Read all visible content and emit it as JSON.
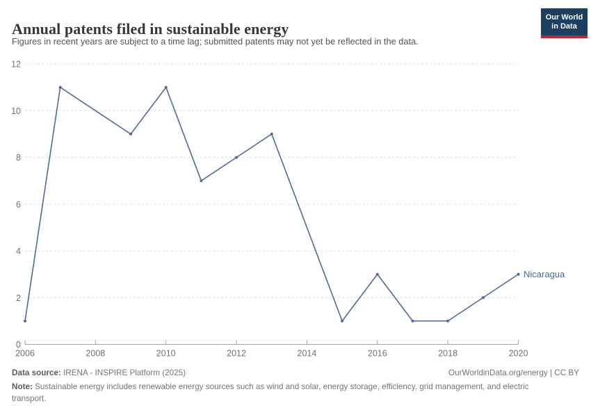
{
  "header": {
    "title": "Annual patents filed in sustainable energy",
    "subtitle": "Figures in recent years are subject to a time lag; submitted patents may not yet be reflected in the data.",
    "logo": {
      "line1": "Our World",
      "line2": "in Data"
    }
  },
  "chart_data": {
    "type": "line",
    "title": "Annual patents filed in sustainable energy",
    "x": [
      2006,
      2007,
      2008,
      2009,
      2010,
      2011,
      2012,
      2013,
      2014,
      2015,
      2016,
      2017,
      2018,
      2019,
      2020
    ],
    "series": [
      {
        "name": "Nicaragua",
        "color": "#4C6A9C",
        "values": [
          1,
          11,
          null,
          9,
          11,
          7,
          8,
          9,
          null,
          1,
          3,
          1,
          1,
          2,
          3
        ]
      }
    ],
    "xlabel": "",
    "ylabel": "",
    "ylim": [
      0,
      12
    ],
    "yticks": [
      0,
      2,
      4,
      6,
      8,
      10,
      12
    ],
    "xticks": [
      2006,
      2008,
      2010,
      2012,
      2014,
      2016,
      2018,
      2020
    ],
    "grid": "horizontal-dashed",
    "legend": "series-label-at-line-end"
  },
  "footer": {
    "data_source_label": "Data source:",
    "data_source": "IRENA - INSPIRE Platform (2025)",
    "attribution": "OurWorldinData.org/energy | CC BY",
    "note_label": "Note:",
    "note": "Sustainable energy includes renewable energy sources such as wind and solar, energy storage, efficiency, grid management, and electric transport."
  },
  "colors": {
    "line": "#4C6A9C",
    "grid": "#dddddd",
    "axis": "#a5a5a5",
    "tick_label": "#707070",
    "title": "#383636",
    "subtitle": "#555555",
    "footer_text": "#757575",
    "logo_bg": "#1d3d63",
    "logo_accent": "#c0262d"
  }
}
